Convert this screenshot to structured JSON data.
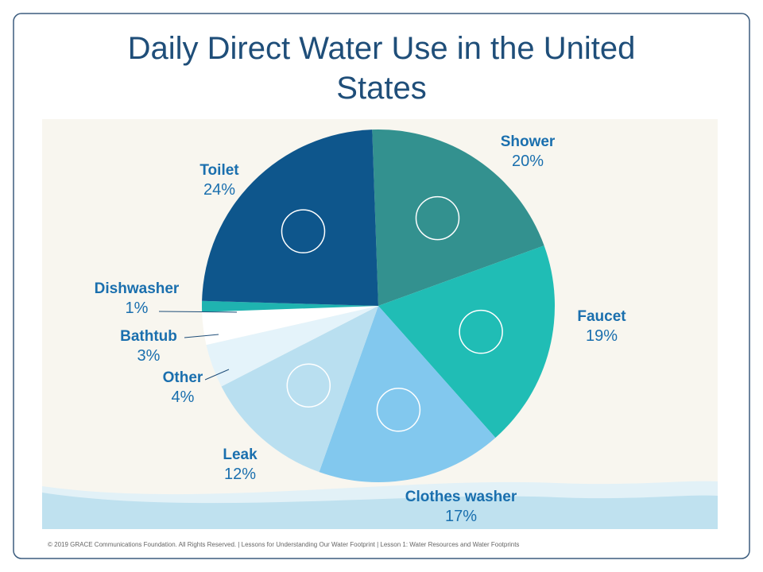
{
  "chart_data": {
    "type": "pie",
    "title": "Daily Direct Water Use in the United States",
    "categories": [
      "Shower",
      "Faucet",
      "Clothes washer",
      "Leak",
      "Other",
      "Bathtub",
      "Dishwasher",
      "Toilet"
    ],
    "values": [
      20,
      19,
      17,
      12,
      4,
      3,
      1,
      24
    ],
    "value_labels": [
      "20%",
      "19%",
      "17%",
      "12%",
      "4%",
      "3%",
      "1%",
      "24%"
    ],
    "colors": [
      "#33918f",
      "#20bdb5",
      "#82c8ee",
      "#b9dff0",
      "#e4f3fa",
      "#ffffff",
      "#1fb3b0",
      "#0e568c"
    ]
  },
  "footer": "© 2019  GRACE Communications  Foundation. All Rights Reserved.  |  Lessons for Understanding  Our Water Footprint  |  Lesson 1: Water Resources and Water Footprints"
}
